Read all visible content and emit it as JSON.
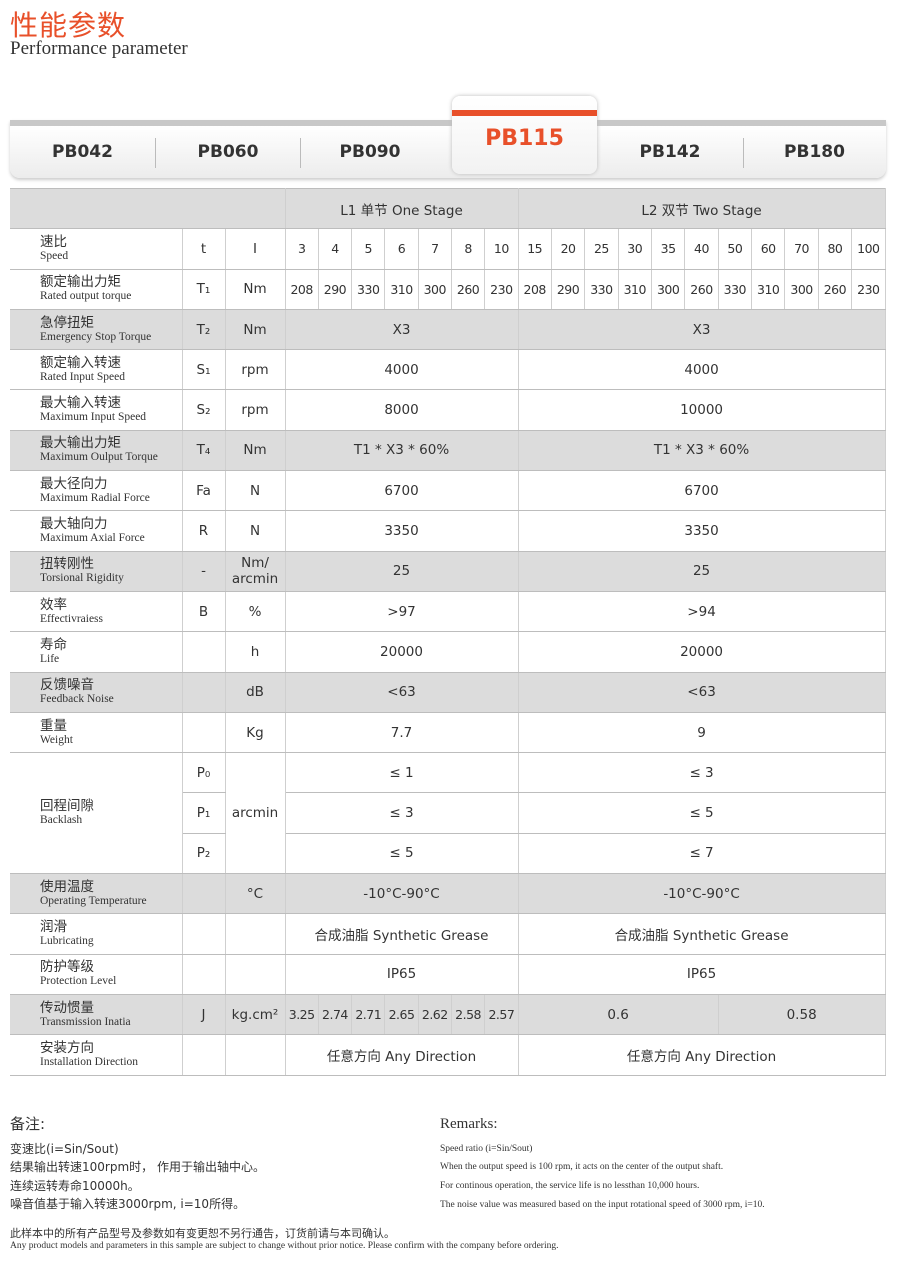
{
  "header": {
    "title_cn": "性能参数",
    "title_en": "Performance parameter"
  },
  "tabs": [
    "PB042",
    "PB060",
    "PB090",
    "PB115",
    "PB142",
    "PB180"
  ],
  "active_tab": "PB115",
  "accent_color": "#e8502a",
  "table": {
    "stage1": "L1 单节 One Stage",
    "stage2": "L2 双节 Two Stage",
    "speed": {
      "cn": "速比",
      "en": "Speed",
      "sym": "t",
      "unit": "I",
      "l1": [
        "3",
        "4",
        "5",
        "6",
        "7",
        "8",
        "10"
      ],
      "l2": [
        "15",
        "20",
        "25",
        "30",
        "35",
        "40",
        "50",
        "60",
        "70",
        "80",
        "100"
      ]
    },
    "torque": {
      "cn": "额定输出力矩",
      "en": "Rated output torque",
      "sym": "T₁",
      "unit": "Nm",
      "l1": [
        "208",
        "290",
        "330",
        "310",
        "300",
        "260",
        "230"
      ],
      "l2": [
        "208",
        "290",
        "330",
        "310",
        "300",
        "260",
        "330",
        "310",
        "300",
        "260",
        "230"
      ]
    },
    "rows": [
      {
        "cn": "急停扭矩",
        "en": "Emergency Stop Torque",
        "sym": "T₂",
        "unit": "Nm",
        "l1": "X3",
        "l2": "X3",
        "shade": true
      },
      {
        "cn": "额定输入转速",
        "en": "Rated Input Speed",
        "sym": "S₁",
        "unit": "rpm",
        "l1": "4000",
        "l2": "4000"
      },
      {
        "cn": "最大输入转速",
        "en": "Maximum Input Speed",
        "sym": "S₂",
        "unit": "rpm",
        "l1": "8000",
        "l2": "10000"
      },
      {
        "cn": "最大输出力矩",
        "en": "Maximum Oulput Torque",
        "sym": "T₄",
        "unit": "Nm",
        "l1": "T1 * X3 * 60%",
        "l2": "T1 * X3 * 60%",
        "shade": true
      },
      {
        "cn": "最大径向力",
        "en": "Maximum Radial Force",
        "sym": "Fa",
        "unit": "N",
        "l1": "6700",
        "l2": "6700"
      },
      {
        "cn": "最大轴向力",
        "en": "Maximum Axial Force",
        "sym": "R",
        "unit": "N",
        "l1": "3350",
        "l2": "3350"
      },
      {
        "cn": "扭转刚性",
        "en": "Torsional Rigidity",
        "sym": "-",
        "unit": "Nm/ arcmin",
        "l1": "25",
        "l2": "25",
        "shade": true
      },
      {
        "cn": "效率",
        "en": "Effectivraiess",
        "sym": "B",
        "unit": "%",
        "l1": ">97",
        "l2": ">94"
      },
      {
        "cn": "寿命",
        "en": "Life",
        "sym": "",
        "unit": "h",
        "l1": "20000",
        "l2": "20000"
      },
      {
        "cn": "反馈噪音",
        "en": "Feedback Noise",
        "sym": "",
        "unit": "dB",
        "l1": "<63",
        "l2": "<63",
        "shade": true
      },
      {
        "cn": "重量",
        "en": "Weight",
        "sym": "",
        "unit": "Kg",
        "l1": "7.7",
        "l2": "9"
      }
    ],
    "backlash": {
      "cn": "回程间隙",
      "en": "Backlash",
      "unit": "arcmin",
      "sub": [
        {
          "sym": "P₀",
          "l1": "≤ 1",
          "l2": "≤ 3"
        },
        {
          "sym": "P₁",
          "l1": "≤ 3",
          "l2": "≤ 5"
        },
        {
          "sym": "P₂",
          "l1": "≤ 5",
          "l2": "≤ 7"
        }
      ]
    },
    "rows2": [
      {
        "cn": "使用温度",
        "en": "Operating Temperature",
        "sym": "",
        "unit": "°C",
        "l1": "-10°C-90°C",
        "l2": "-10°C-90°C",
        "shade": true
      },
      {
        "cn": "润滑",
        "en": "Lubricating",
        "sym": "",
        "unit": "",
        "l1": "合成油脂  Synthetic Grease",
        "l2": "合成油脂  Synthetic Grease"
      },
      {
        "cn": "防护等级",
        "en": "Protection Level",
        "sym": "",
        "unit": "",
        "l1": "IP65",
        "l2": "IP65"
      }
    ],
    "inertia": {
      "cn": "传动惯量",
      "en": "Transmission Inatia",
      "sym": "J",
      "unit": "kg.cm²",
      "l1": [
        "3.25",
        "2.74",
        "2.71",
        "2.65",
        "2.62",
        "2.58",
        "2.57"
      ],
      "l2": [
        "0.6",
        "0.58"
      ]
    },
    "install": {
      "cn": "安装方向",
      "en": "Installation Direction",
      "sym": "",
      "unit": "",
      "l1": "任意方向 Any Direction",
      "l2": "任意方向 Any Direction"
    }
  },
  "remarks_cn": {
    "title": "备注:",
    "lines": [
      "变速比(i=Sin/Sout)",
      "结果输出转速100rpm时， 作用于输出轴中心。",
      "连续运转寿命10000h。",
      "噪音值基于输入转速3000rpm, i=10所得。"
    ]
  },
  "remarks_en": {
    "title": "Remarks:",
    "lines": [
      "Speed ratio (i=Sin/Sout)",
      "When the output speed is 100 rpm, it acts on the center of the output shaft.",
      "For continous operation, the service life is no lessthan 10,000 hours.",
      "The noise value was measured based on the input rotational speed of 3000 rpm, i=10."
    ]
  },
  "footer": {
    "cn": "此样本中的所有产品型号及参数如有变更恕不另行通告，订货前请与本司确认。",
    "en": "Any product models and parameters in this sample are subject to change without prior notice. Please confirm with the company before ordering."
  }
}
